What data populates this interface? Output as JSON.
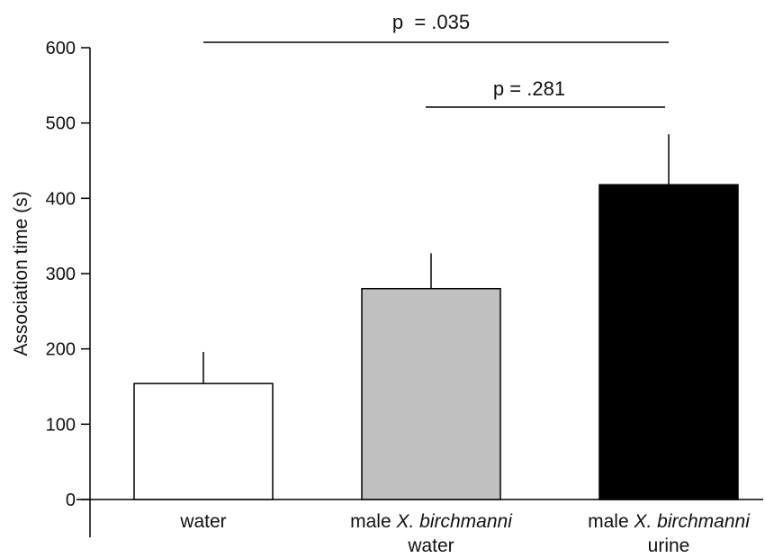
{
  "chart_data": {
    "type": "bar",
    "title": "",
    "xlabel": "",
    "ylabel": "Association time (s)",
    "ylim": [
      0,
      600
    ],
    "yticks": [
      0,
      100,
      200,
      300,
      400,
      500,
      600
    ],
    "grid": false,
    "categories": [
      {
        "line1_plain": "water",
        "line1_italic": "",
        "line1_tail": "",
        "line2": ""
      },
      {
        "line1_plain": "male ",
        "line1_italic": "X. birchmanni",
        "line1_tail": "",
        "line2": "water"
      },
      {
        "line1_plain": "male ",
        "line1_italic": "X. birchmanni",
        "line1_tail": "",
        "line2": "urine"
      }
    ],
    "values": [
      154,
      280,
      418
    ],
    "errors": [
      42,
      47,
      67
    ],
    "bar_colors": [
      "#ffffff",
      "#c0c0c0",
      "#000000"
    ],
    "significance": [
      {
        "label": "p  = .035",
        "from": 0,
        "to": 2
      },
      {
        "label": "p = .281",
        "from": 1,
        "to": 2
      }
    ]
  }
}
